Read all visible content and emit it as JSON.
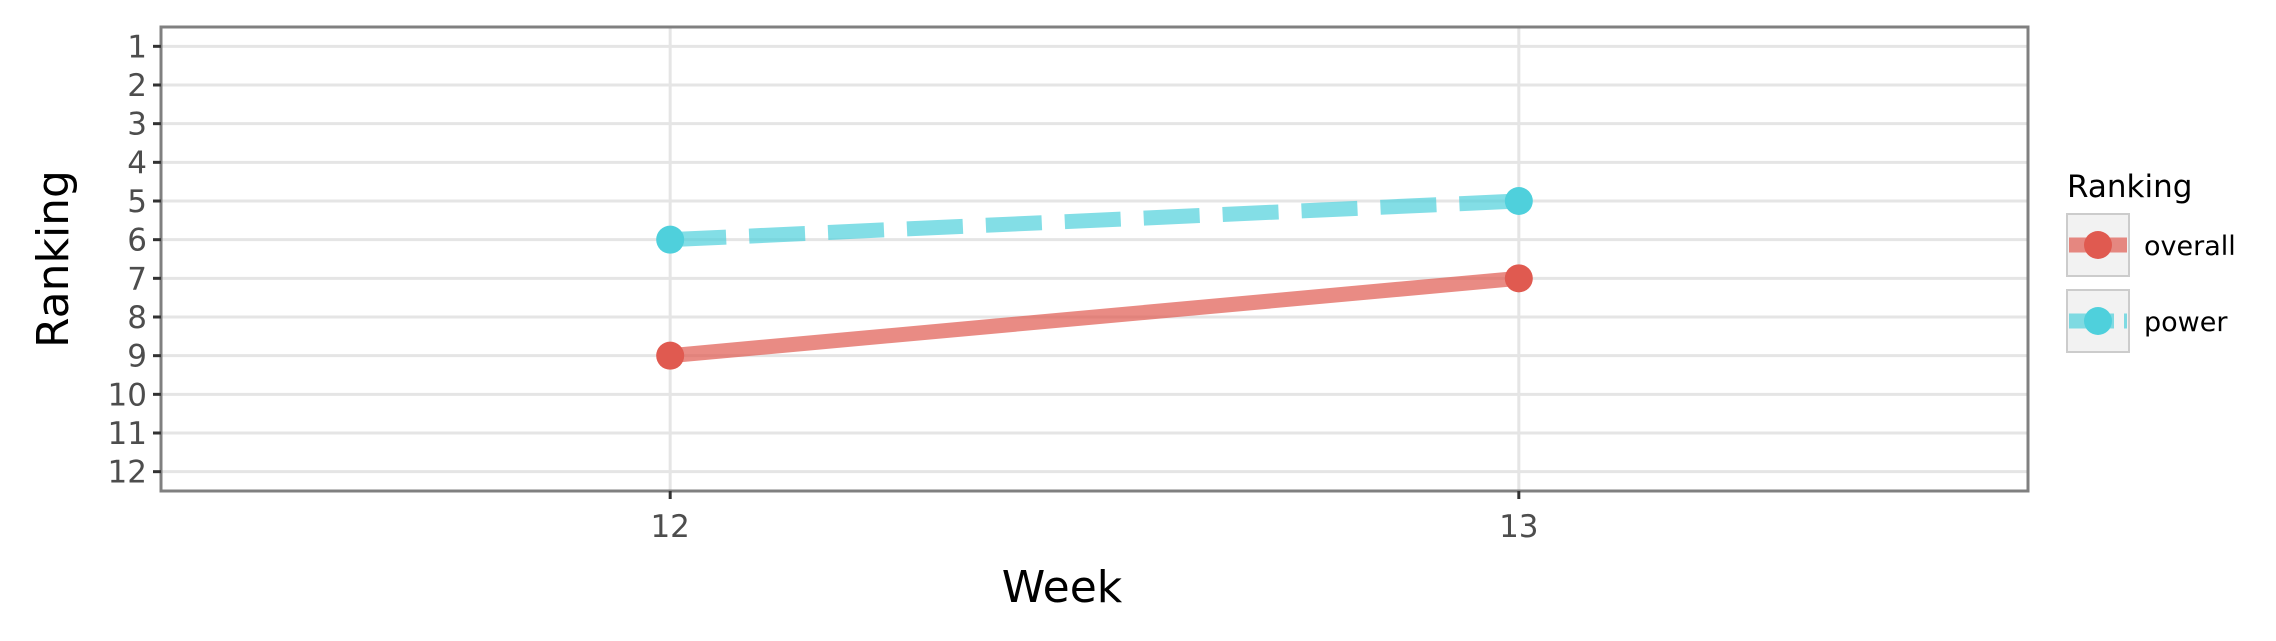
{
  "chart_data": {
    "type": "line",
    "xlabel": "Week",
    "ylabel": "Ranking",
    "x": [
      12,
      13
    ],
    "xlim": [
      11.4,
      13.6
    ],
    "y_reversed": true,
    "ylim": [
      12.5,
      0.5
    ],
    "y_ticks": [
      1,
      2,
      3,
      4,
      5,
      6,
      7,
      8,
      9,
      10,
      11,
      12
    ],
    "x_ticks": [
      12,
      13
    ],
    "grid": true,
    "legend": {
      "title": "Ranking",
      "position": "right"
    },
    "series": [
      {
        "name": "overall",
        "values": [
          9,
          7
        ],
        "color": "#e05a50",
        "line_style": "solid"
      },
      {
        "name": "power",
        "values": [
          6,
          5
        ],
        "color": "#4fd0dc",
        "line_style": "dashed"
      }
    ]
  }
}
